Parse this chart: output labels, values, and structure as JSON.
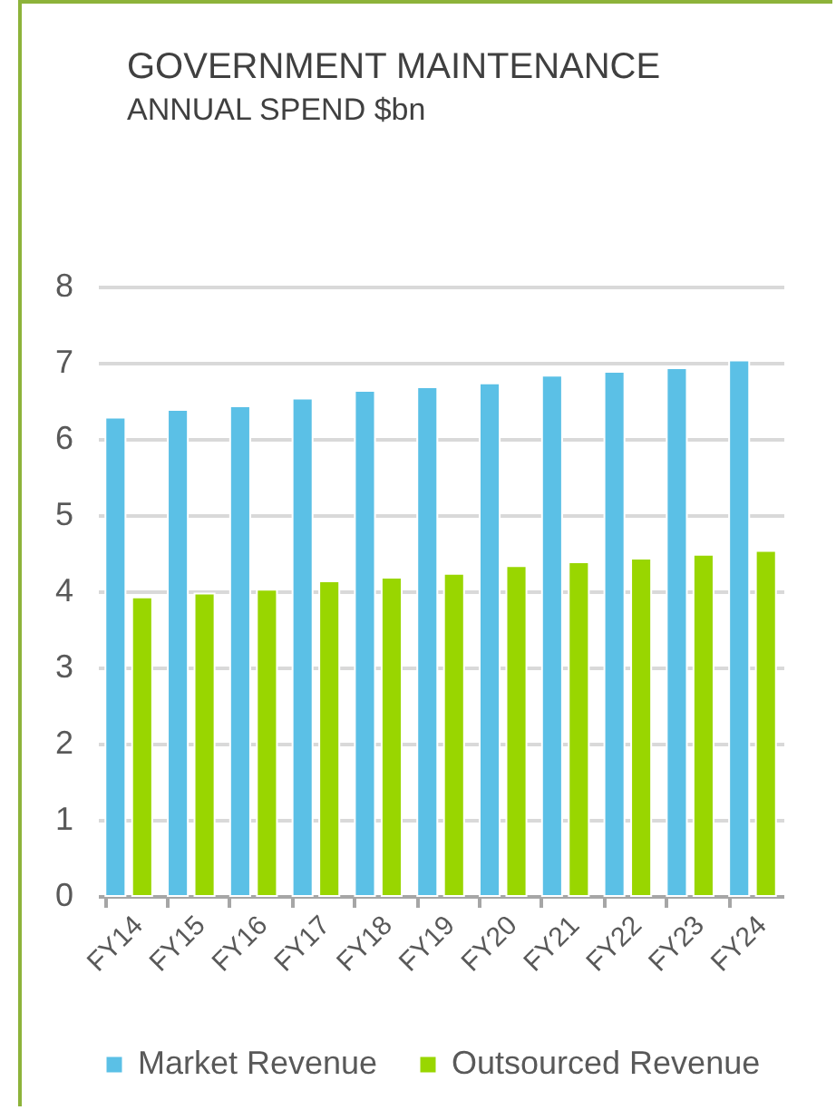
{
  "chart_data": {
    "type": "bar",
    "title": "GOVERNMENT MAINTENANCE",
    "subtitle": "ANNUAL SPEND $bn",
    "categories": [
      "FY14",
      "FY15",
      "FY16",
      "FY17",
      "FY18",
      "FY19",
      "FY20",
      "FY21",
      "FY22",
      "FY23",
      "FY24"
    ],
    "series": [
      {
        "name": "Market Revenue",
        "color": "#5bc0e6",
        "values": [
          6.28,
          6.38,
          6.43,
          6.53,
          6.63,
          6.68,
          6.73,
          6.83,
          6.88,
          6.93,
          7.03
        ]
      },
      {
        "name": "Outsourced Revenue",
        "color": "#99d600",
        "values": [
          3.92,
          3.97,
          4.02,
          4.13,
          4.18,
          4.23,
          4.33,
          4.38,
          4.43,
          4.48,
          4.53
        ]
      }
    ],
    "ylim": [
      0,
      8
    ],
    "yticks": [
      0,
      1,
      2,
      3,
      4,
      5,
      6,
      7,
      8
    ],
    "grid": "y",
    "legend": "bottom"
  }
}
